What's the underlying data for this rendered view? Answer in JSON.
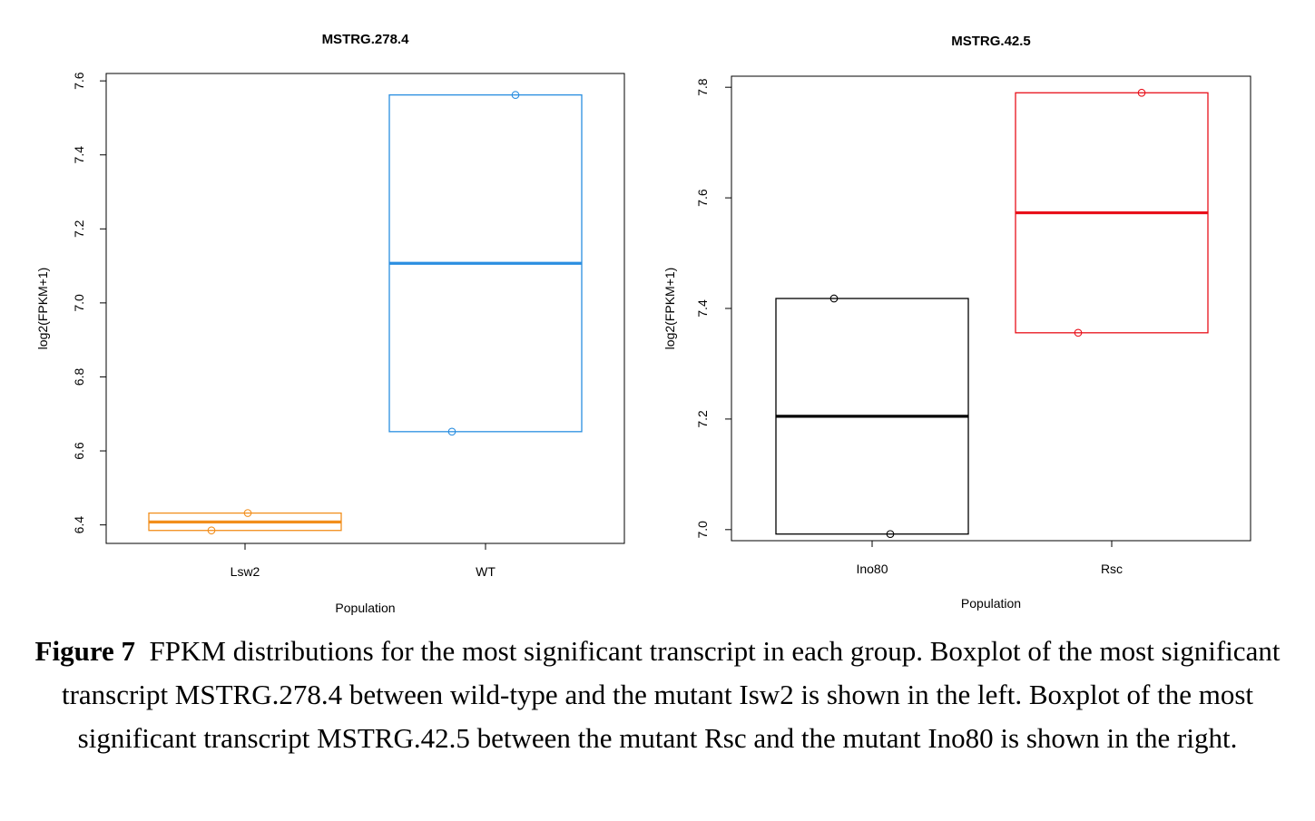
{
  "chart_data": [
    {
      "type": "box",
      "title": "MSTRG.278.4",
      "xlabel": "Population",
      "ylabel": "log2(FPKM+1)",
      "ylim": [
        6.35,
        7.62
      ],
      "yticks": [
        "6.4",
        "6.6",
        "6.8",
        "7.0",
        "7.2",
        "7.4",
        "7.6"
      ],
      "categories": [
        "Lsw2",
        "WT"
      ],
      "groups": [
        {
          "category": "Lsw2",
          "color": "#f28e1c",
          "min": 6.385,
          "q1": 6.385,
          "median": 6.408,
          "q3": 6.432,
          "max": 6.432,
          "points": [
            6.432,
            6.385
          ]
        },
        {
          "category": "WT",
          "color": "#2a8ee0",
          "min": 6.652,
          "q1": 6.652,
          "median": 7.107,
          "q3": 7.562,
          "max": 7.562,
          "points": [
            7.562,
            6.652
          ]
        }
      ]
    },
    {
      "type": "box",
      "title": "MSTRG.42.5",
      "xlabel": "Population",
      "ylabel": "log2(FPKM+1)",
      "ylim": [
        6.98,
        7.82
      ],
      "yticks": [
        "7.0",
        "7.2",
        "7.4",
        "7.6",
        "7.8"
      ],
      "categories": [
        "Ino80",
        "Rsc"
      ],
      "groups": [
        {
          "category": "Ino80",
          "color": "#000000",
          "min": 6.992,
          "q1": 6.992,
          "median": 7.205,
          "q3": 7.418,
          "max": 7.418,
          "points": [
            7.418,
            6.992
          ]
        },
        {
          "category": "Rsc",
          "color": "#e8101a",
          "min": 7.356,
          "q1": 7.356,
          "median": 7.573,
          "q3": 7.79,
          "max": 7.79,
          "points": [
            7.79,
            7.356
          ]
        }
      ]
    }
  ],
  "caption": {
    "label": "Figure 7",
    "text": "FPKM distributions for the most significant transcript in each group. Boxplot of the most significant transcript MSTRG.278.4 between wild-type and the mutant Isw2 is shown in the left. Boxplot of the most significant transcript MSTRG.42.5 between the mutant Rsc and the mutant Ino80 is shown in the right."
  }
}
